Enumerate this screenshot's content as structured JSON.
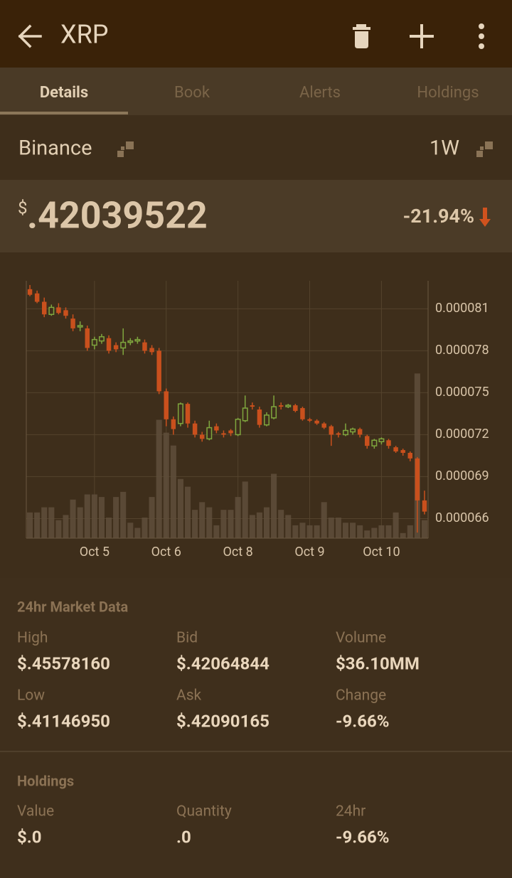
{
  "header": {
    "title": "XRP"
  },
  "tabs": [
    "Details",
    "Book",
    "Alerts",
    "Holdings"
  ],
  "exchange": "Binance",
  "period": "1W",
  "price": {
    "currency": "$",
    "value": ".42039522",
    "change": "-21.94%"
  },
  "chart_data": {
    "type": "candlestick",
    "categories": [
      null,
      null,
      null,
      null,
      null,
      null,
      null,
      null,
      null,
      "Oct 5",
      null,
      null,
      null,
      null,
      null,
      null,
      null,
      null,
      null,
      "Oct 6",
      null,
      null,
      null,
      null,
      null,
      null,
      null,
      null,
      null,
      "Oct 8",
      null,
      null,
      null,
      null,
      null,
      null,
      null,
      null,
      null,
      "Oct 9",
      null,
      null,
      null,
      null,
      null,
      null,
      null,
      null,
      null,
      "Oct 10",
      null,
      null,
      null,
      null,
      null,
      null
    ],
    "open": [
      8.24e-05,
      8.21e-05,
      8.15e-05,
      8.06e-05,
      8.11e-05,
      8.09e-05,
      8.03e-05,
      7.97e-05,
      7.96e-05,
      7.84e-05,
      7.87e-05,
      7.89e-05,
      7.84e-05,
      7.82e-05,
      7.86e-05,
      7.87e-05,
      7.86e-05,
      7.82e-05,
      7.8e-05,
      7.51e-05,
      7.31e-05,
      7.28e-05,
      7.42e-05,
      7.28e-05,
      7.2e-05,
      7.17e-05,
      7.26e-05,
      7.21e-05,
      7.23e-05,
      7.2e-05,
      7.3e-05,
      7.41e-05,
      7.38e-05,
      7.27e-05,
      7.32e-05,
      7.41e-05,
      7.4e-05,
      7.41e-05,
      7.39e-05,
      7.31e-05,
      7.3e-05,
      7.28e-05,
      7.26e-05,
      7.21e-05,
      7.2e-05,
      7.22e-05,
      7.24e-05,
      7.19e-05,
      7.12e-05,
      7.15e-05,
      7.16e-05,
      7.11e-05,
      7.09e-05,
      7.07e-05,
      7.03e-05,
      6.73e-05
    ],
    "high": [
      8.27e-05,
      8.23e-05,
      8.18e-05,
      8.13e-05,
      8.14e-05,
      8.11e-05,
      8.06e-05,
      8.01e-05,
      7.98e-05,
      7.9e-05,
      7.92e-05,
      7.91e-05,
      7.86e-05,
      7.96e-05,
      7.89e-05,
      7.9e-05,
      7.88e-05,
      7.84e-05,
      7.82e-05,
      7.53e-05,
      7.33e-05,
      7.43e-05,
      7.43e-05,
      7.3e-05,
      7.22e-05,
      7.3e-05,
      7.28e-05,
      7.23e-05,
      7.24e-05,
      7.32e-05,
      7.48e-05,
      7.43e-05,
      7.4e-05,
      7.36e-05,
      7.48e-05,
      7.43e-05,
      7.42e-05,
      7.42e-05,
      7.4e-05,
      7.32e-05,
      7.31e-05,
      7.29e-05,
      7.27e-05,
      7.22e-05,
      7.28e-05,
      7.25e-05,
      7.25e-05,
      7.2e-05,
      7.17e-05,
      7.18e-05,
      7.17e-05,
      7.12e-05,
      7.1e-05,
      7.08e-05,
      7.04e-05,
      6.8e-05
    ],
    "low": [
      8.19e-05,
      8.14e-05,
      8.04e-05,
      8.05e-05,
      8.06e-05,
      8.03e-05,
      7.94e-05,
      7.94e-05,
      7.8e-05,
      7.81e-05,
      7.85e-05,
      7.78e-05,
      7.79e-05,
      7.77e-05,
      7.84e-05,
      7.85e-05,
      7.78e-05,
      7.77e-05,
      7.49e-05,
      7.26e-05,
      7.2e-05,
      7.26e-05,
      7.25e-05,
      7.18e-05,
      7.15e-05,
      7.16e-05,
      7.21e-05,
      7.18e-05,
      7.19e-05,
      7.19e-05,
      7.29e-05,
      7.38e-05,
      7.25e-05,
      7.26e-05,
      7.31e-05,
      7.38e-05,
      7.39e-05,
      7.36e-05,
      7.3e-05,
      7.29e-05,
      7.27e-05,
      7.24e-05,
      7.12e-05,
      7.18e-05,
      7.19e-05,
      7.2e-05,
      7.18e-05,
      7.1e-05,
      7.1e-05,
      7.13e-05,
      7.1e-05,
      7.07e-05,
      7.05e-05,
      7.01e-05,
      6.5e-05,
      6.63e-05
    ],
    "close": [
      8.2e-05,
      8.15e-05,
      8.06e-05,
      8.11e-05,
      8.07e-05,
      8.05e-05,
      7.96e-05,
      7.98e-05,
      7.82e-05,
      7.88e-05,
      7.9e-05,
      7.8e-05,
      7.81e-05,
      7.86e-05,
      7.87e-05,
      7.88e-05,
      7.8e-05,
      7.79e-05,
      7.51e-05,
      7.31e-05,
      7.24e-05,
      7.42e-05,
      7.28e-05,
      7.2e-05,
      7.17e-05,
      7.25e-05,
      7.23e-05,
      7.2e-05,
      7.21e-05,
      7.31e-05,
      7.39e-05,
      7.4e-05,
      7.27e-05,
      7.34e-05,
      7.4e-05,
      7.4e-05,
      7.41e-05,
      7.37e-05,
      7.31e-05,
      7.3e-05,
      7.28e-05,
      7.25e-05,
      7.2e-05,
      7.2e-05,
      7.23e-05,
      7.24e-05,
      7.2e-05,
      7.12e-05,
      7.16e-05,
      7.17e-05,
      7.12e-05,
      7.08e-05,
      7.07e-05,
      7.03e-05,
      6.73e-05,
      6.65e-05
    ],
    "volume": [
      10,
      10,
      12,
      12,
      7,
      9,
      15,
      12,
      17,
      17,
      16,
      8,
      16,
      18,
      6,
      4,
      8,
      16,
      46,
      41,
      36,
      23,
      20,
      11,
      14,
      12,
      5,
      11,
      11,
      16,
      22,
      9,
      10,
      12,
      25,
      11,
      9,
      5,
      6,
      5,
      5,
      14,
      8,
      8,
      6,
      6,
      5,
      3,
      4,
      5,
      5,
      10,
      2,
      5,
      64,
      7
    ],
    "ylim": [
      6.46e-05,
      8.3e-05
    ],
    "yticks": [
      6.6e-05,
      6.9e-05,
      7.2e-05,
      7.5e-05,
      7.8e-05,
      8.1e-05
    ],
    "y2lim": [
      0,
      100
    ],
    "grid": true,
    "up_color": "#7fa63e",
    "down_color": "#c9501d",
    "volume_color": "#5f4e3b"
  },
  "market_data": {
    "title": "24hr Market Data",
    "items": [
      {
        "label": "High",
        "value": "$.45578160"
      },
      {
        "label": "Bid",
        "value": "$.42064844"
      },
      {
        "label": "Volume",
        "value": "$36.10MM"
      },
      {
        "label": "Low",
        "value": "$.41146950"
      },
      {
        "label": "Ask",
        "value": "$.42090165"
      },
      {
        "label": "Change",
        "value": "-9.66%"
      }
    ]
  },
  "holdings": {
    "title": "Holdings",
    "items": [
      {
        "label": "Value",
        "value": "$.0"
      },
      {
        "label": "Quantity",
        "value": ".0"
      },
      {
        "label": "24hr",
        "value": "-9.66%"
      }
    ]
  }
}
